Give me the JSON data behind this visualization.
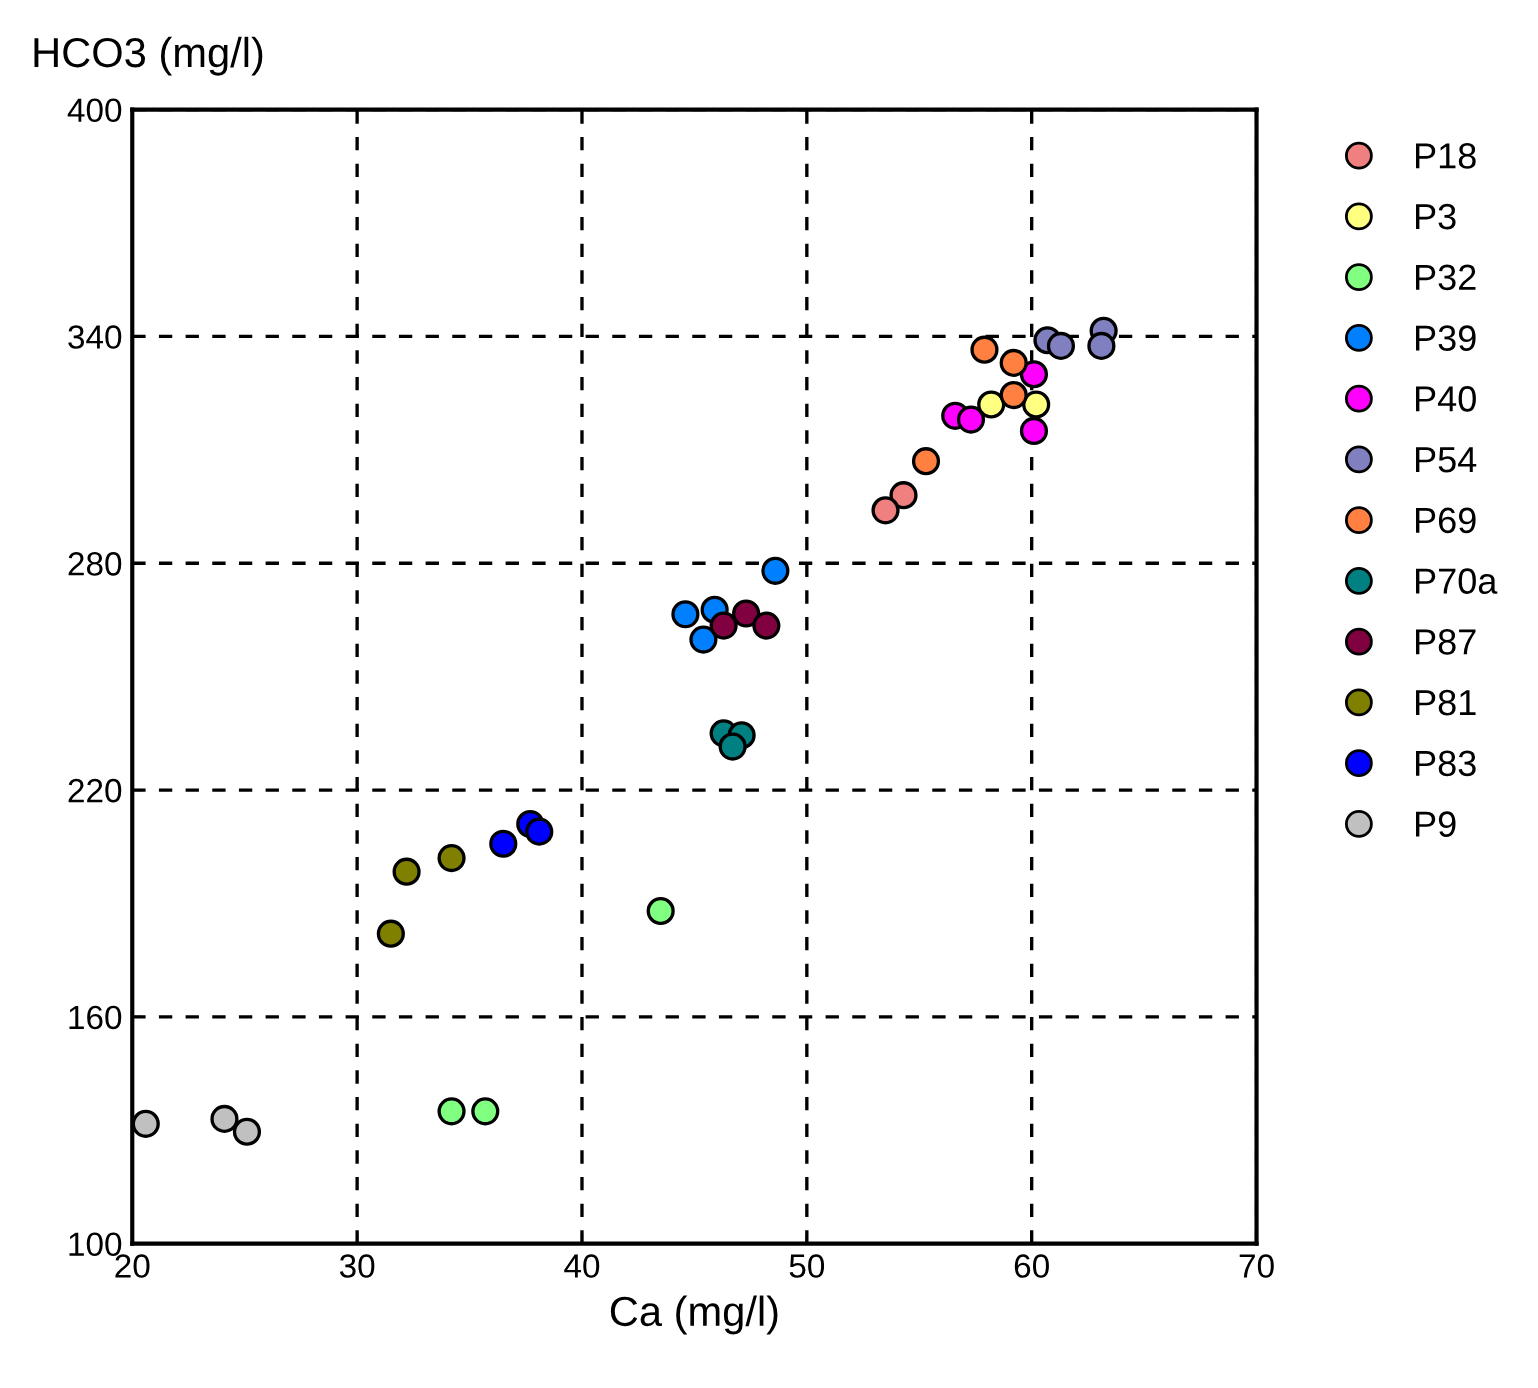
{
  "chart_data": {
    "type": "scatter",
    "xlabel": "Ca (mg/l)",
    "ylabel": "HCO3 (mg/l)",
    "xlim": [
      20,
      70
    ],
    "ylim": [
      100,
      400
    ],
    "xticks": [
      20,
      30,
      40,
      50,
      60,
      70
    ],
    "yticks": [
      100,
      160,
      220,
      280,
      340,
      400
    ],
    "grid": true,
    "legend": "right",
    "marker": "circle",
    "series": [
      {
        "name": "P18",
        "color": "#f08080",
        "x": [
          54.3,
          53.5
        ],
        "values": [
          298,
          294
        ]
      },
      {
        "name": "P3",
        "color": "#ffff80",
        "x": [
          58.2,
          60.2
        ],
        "values": [
          322,
          322
        ]
      },
      {
        "name": "P32",
        "color": "#80ff80",
        "x": [
          43.5,
          34.2,
          35.7
        ],
        "values": [
          188,
          135,
          135
        ]
      },
      {
        "name": "P39",
        "color": "#0080ff",
        "x": [
          48.6,
          44.6,
          45.9,
          45.4
        ],
        "values": [
          278,
          266.5,
          267.7,
          259.8
        ]
      },
      {
        "name": "P40",
        "color": "#ff00ff",
        "x": [
          60.1,
          56.6,
          57.3,
          60.1
        ],
        "values": [
          330,
          319,
          318,
          315
        ]
      },
      {
        "name": "P54",
        "color": "#8080c0",
        "x": [
          60.7,
          61.3,
          63.2,
          63.1
        ],
        "values": [
          339,
          337.5,
          341.5,
          337.5
        ]
      },
      {
        "name": "P69",
        "color": "#ff8040",
        "x": [
          57.9,
          59.2,
          59.2,
          55.3
        ],
        "values": [
          336.5,
          333,
          324.5,
          307
        ]
      },
      {
        "name": "P70a",
        "color": "#008080",
        "x": [
          46.3,
          47.1,
          46.7
        ],
        "values": [
          235,
          234.5,
          231.5
        ]
      },
      {
        "name": "P87",
        "color": "#800040",
        "x": [
          46.3,
          47.3,
          48.2
        ],
        "values": [
          263.5,
          266.7,
          263.5
        ]
      },
      {
        "name": "P81",
        "color": "#808000",
        "x": [
          32.2,
          34.2,
          31.5
        ],
        "values": [
          198.4,
          202,
          182
        ]
      },
      {
        "name": "P83",
        "color": "#0000ff",
        "x": [
          37.7,
          36.5,
          38.1
        ],
        "values": [
          211,
          205.8,
          209
        ]
      },
      {
        "name": "P9",
        "color": "#c0c0c0",
        "x": [
          20.6,
          24.1,
          25.1
        ],
        "values": [
          131.7,
          133,
          129.6
        ]
      }
    ]
  }
}
